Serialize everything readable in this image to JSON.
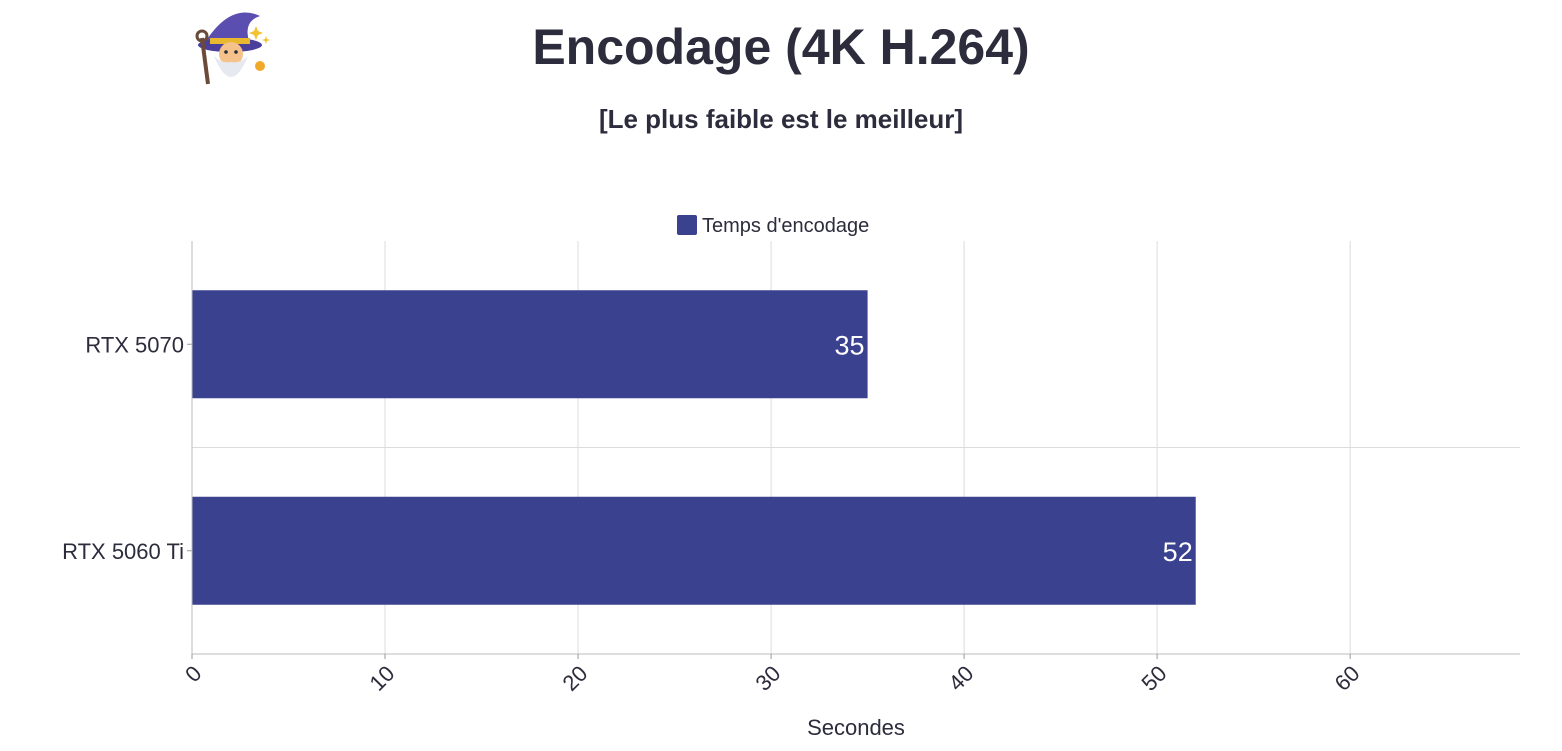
{
  "chart_data": {
    "type": "bar",
    "orientation": "horizontal",
    "title": "Encodage (4K H.264)",
    "subtitle": "[Le plus faible est le meilleur]",
    "categories": [
      "RTX 5070",
      "RTX 5060 Ti"
    ],
    "series": [
      {
        "name": "Temps d'encodage",
        "values": [
          35,
          52
        ],
        "color": "#3a418f"
      }
    ],
    "xlabel": "Secondes",
    "ylabel": "",
    "xlim": [
      0,
      68.8
    ],
    "xticks": [
      0,
      10,
      20,
      30,
      40,
      50,
      60
    ],
    "xtick_labels": [
      "0",
      "10",
      "20",
      "30",
      "40",
      "50",
      "60"
    ],
    "grid": true,
    "legend": "top-center",
    "data_labels": true
  },
  "colors": {
    "bar": "#3a418f",
    "grid": "#dcdcdc",
    "text": "#2c2c3c"
  },
  "logo_icon": "wizard-icon"
}
